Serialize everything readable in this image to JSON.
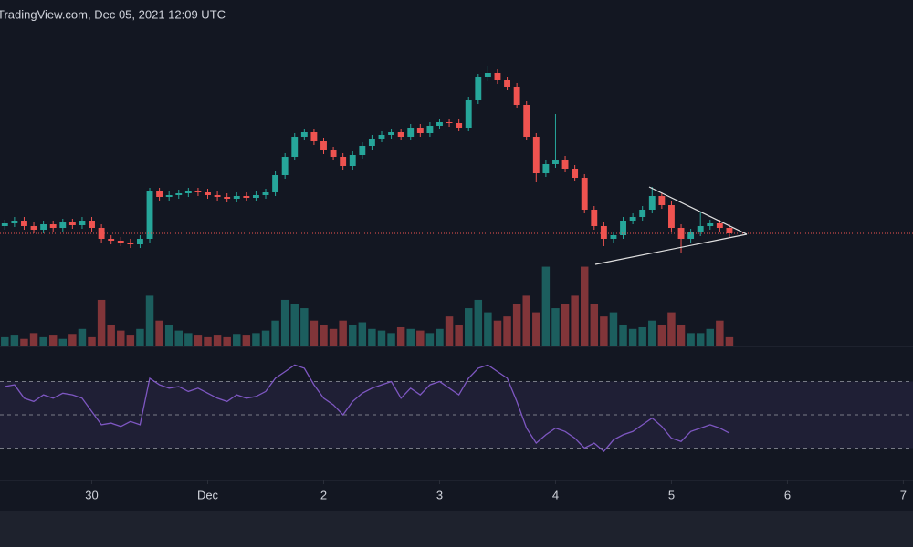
{
  "chart_data": {
    "type": "candlestick",
    "header": "TradingView.com, Dec 05, 2021 12:09 UTC",
    "x": [
      -18,
      -16,
      -14,
      -12,
      -10,
      -8,
      -6,
      -4,
      -2,
      0,
      2,
      4,
      6,
      8,
      10,
      12,
      14,
      16,
      18,
      20,
      22,
      24,
      26,
      28,
      30,
      32,
      34,
      36,
      38,
      40,
      42,
      44,
      46,
      48,
      50,
      52,
      54,
      56,
      58,
      60,
      62,
      64,
      66,
      68,
      70,
      72,
      74,
      76,
      78,
      80,
      82,
      84,
      86,
      88,
      90,
      92,
      94,
      96,
      98,
      100,
      102,
      104,
      106,
      108,
      110,
      112,
      114,
      116,
      118,
      120,
      122,
      124,
      126,
      128,
      130,
      132
    ],
    "open": [
      52,
      55,
      58,
      52,
      48,
      54,
      50,
      56,
      53,
      58,
      50,
      38,
      36,
      34,
      32,
      38,
      90,
      84,
      86,
      88,
      90,
      89,
      86,
      84,
      82,
      85,
      83,
      86,
      89,
      108,
      128,
      150,
      155,
      145,
      135,
      128,
      118,
      130,
      140,
      148,
      152,
      155,
      150,
      160,
      154,
      162,
      166,
      165,
      160,
      190,
      215,
      220,
      212,
      205,
      185,
      150,
      110,
      120,
      125,
      115,
      105,
      70,
      52,
      38,
      42,
      58,
      62,
      70,
      85,
      75,
      50,
      38,
      45,
      52,
      55,
      50
    ],
    "high": [
      59,
      62,
      62,
      56,
      58,
      58,
      60,
      60,
      62,
      62,
      54,
      42,
      40,
      38,
      42,
      94,
      94,
      90,
      92,
      94,
      94,
      93,
      90,
      88,
      89,
      89,
      90,
      93,
      112,
      132,
      154,
      159,
      159,
      149,
      139,
      132,
      134,
      144,
      152,
      156,
      159,
      159,
      164,
      164,
      166,
      170,
      170,
      169,
      194,
      219,
      228,
      224,
      216,
      209,
      189,
      154,
      124,
      175,
      129,
      119,
      109,
      74,
      56,
      46,
      62,
      66,
      74,
      95,
      89,
      79,
      54,
      49,
      68,
      59,
      59,
      54
    ],
    "low": [
      48,
      51,
      48,
      44,
      44,
      46,
      46,
      49,
      49,
      46,
      34,
      32,
      30,
      28,
      28,
      34,
      80,
      80,
      82,
      84,
      85,
      82,
      80,
      78,
      78,
      79,
      79,
      82,
      85,
      104,
      124,
      146,
      141,
      131,
      124,
      114,
      114,
      126,
      136,
      144,
      148,
      146,
      146,
      150,
      150,
      158,
      161,
      156,
      156,
      186,
      211,
      208,
      201,
      181,
      146,
      100,
      106,
      116,
      111,
      101,
      66,
      48,
      30,
      34,
      38,
      54,
      58,
      66,
      71,
      46,
      22,
      34,
      41,
      48,
      46,
      40
    ],
    "close": [
      55,
      58,
      52,
      48,
      54,
      50,
      56,
      53,
      58,
      50,
      38,
      36,
      34,
      32,
      38,
      90,
      84,
      86,
      88,
      90,
      89,
      86,
      84,
      82,
      85,
      83,
      86,
      89,
      108,
      128,
      150,
      155,
      145,
      135,
      128,
      118,
      130,
      140,
      148,
      152,
      155,
      150,
      160,
      154,
      162,
      166,
      165,
      160,
      190,
      215,
      220,
      212,
      205,
      185,
      150,
      110,
      120,
      125,
      115,
      105,
      70,
      52,
      38,
      42,
      58,
      62,
      70,
      85,
      75,
      50,
      38,
      45,
      52,
      55,
      50,
      44
    ],
    "volume": [
      10,
      12,
      8,
      15,
      10,
      12,
      8,
      14,
      20,
      10,
      55,
      25,
      18,
      12,
      20,
      60,
      30,
      25,
      18,
      15,
      12,
      10,
      12,
      10,
      14,
      12,
      15,
      18,
      30,
      55,
      50,
      45,
      30,
      25,
      20,
      30,
      25,
      28,
      20,
      18,
      15,
      22,
      20,
      18,
      15,
      20,
      35,
      25,
      45,
      55,
      40,
      30,
      35,
      50,
      60,
      40,
      95,
      45,
      50,
      60,
      95,
      50,
      35,
      40,
      25,
      20,
      22,
      30,
      25,
      40,
      25,
      15,
      15,
      20,
      30,
      10
    ],
    "rsi": [
      67,
      68,
      60,
      58,
      62,
      60,
      63,
      62,
      60,
      52,
      44,
      45,
      43,
      46,
      44,
      72,
      68,
      66,
      67,
      64,
      66,
      63,
      60,
      58,
      62,
      60,
      61,
      64,
      72,
      76,
      80,
      78,
      68,
      60,
      56,
      50,
      58,
      63,
      66,
      68,
      70,
      60,
      66,
      62,
      68,
      70,
      66,
      62,
      72,
      78,
      80,
      76,
      72,
      58,
      42,
      33,
      38,
      42,
      40,
      36,
      30,
      33,
      28,
      35,
      38,
      40,
      44,
      48,
      43,
      36,
      34,
      40,
      42,
      44,
      42,
      39
    ],
    "xlim": [
      -19,
      170
    ],
    "ylim": [
      0,
      240
    ],
    "volume_ylim": [
      0,
      100
    ],
    "rsi_ylim": [
      10,
      90
    ],
    "rsi_bands": [
      30,
      50,
      70
    ],
    "xticks": [
      {
        "value": 0,
        "label": "30"
      },
      {
        "value": 24,
        "label": "Dec"
      },
      {
        "value": 48,
        "label": "2"
      },
      {
        "value": 72,
        "label": "3"
      },
      {
        "value": 96,
        "label": "4"
      },
      {
        "value": 120,
        "label": "5"
      },
      {
        "value": 144,
        "label": "6"
      },
      {
        "value": 168,
        "label": "7"
      }
    ],
    "up_color": "#26a69a",
    "down_color": "#ef5350",
    "rsi_color": "#7e57c2"
  }
}
